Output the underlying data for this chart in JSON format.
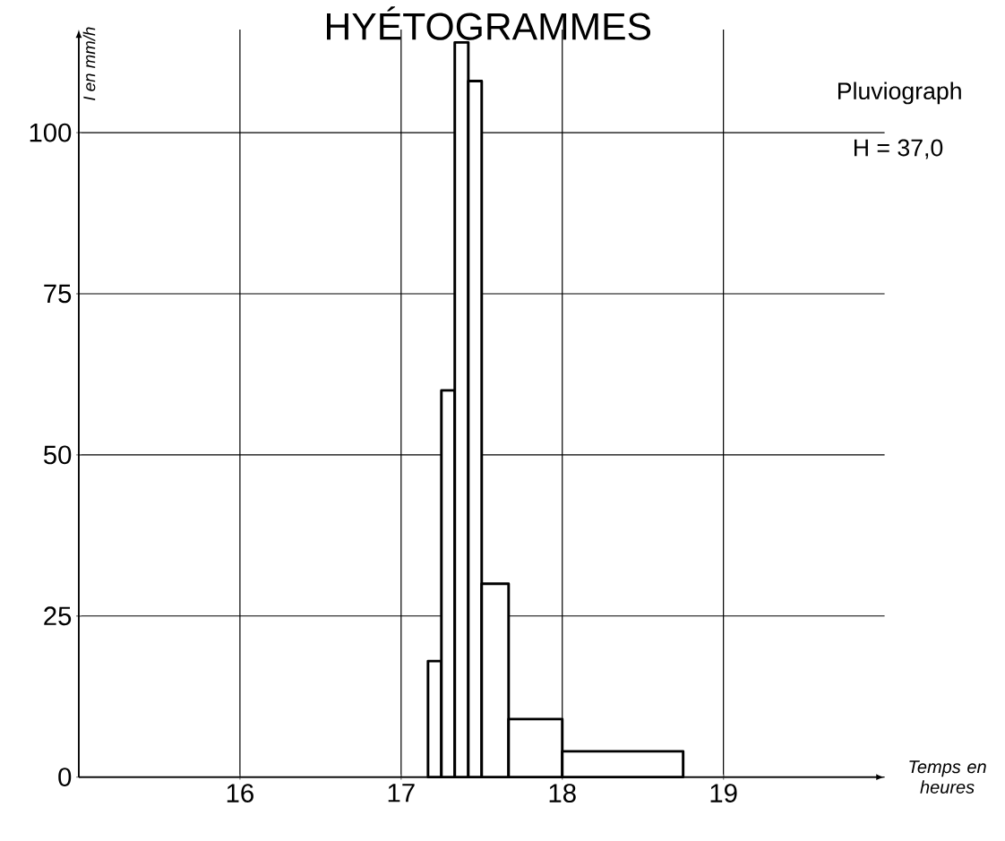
{
  "chart_data": {
    "type": "histogram",
    "title": "HYÉTOGRAMMES",
    "xlabel": "Temps en heures",
    "ylabel": "I en mm/h",
    "annotations": [
      "Pluviograph",
      "H = 37,0"
    ],
    "bins": [
      17.167,
      17.25,
      17.333,
      17.417,
      17.5,
      17.667,
      18,
      18.75
    ],
    "values": [
      18,
      60,
      114,
      108,
      30,
      9,
      4
    ],
    "color": "#000000",
    "xlim": [
      15,
      20
    ],
    "ylim": [
      0,
      116
    ],
    "xticks": [
      16,
      17,
      18,
      19
    ],
    "yticks": [
      0,
      25,
      50,
      75,
      100
    ],
    "grid": true
  }
}
